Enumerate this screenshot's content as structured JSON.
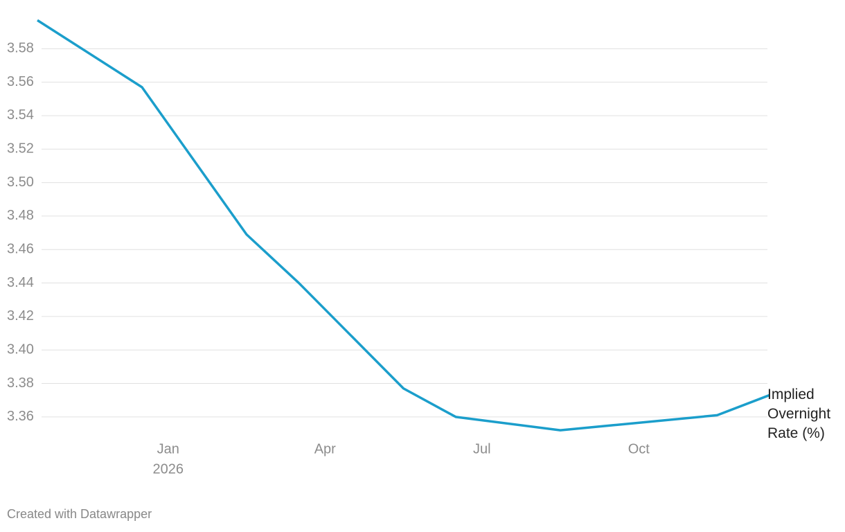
{
  "chart_data": {
    "type": "line",
    "x": [
      "2025-10",
      "2025-12",
      "2026-02",
      "2026-03",
      "2026-05",
      "2026-06",
      "2026-08",
      "2026-09",
      "2026-11",
      "2026-12"
    ],
    "series": [
      {
        "name": "Implied Overnight Rate (%)",
        "color": "#1b9ecb",
        "values": [
          3.597,
          3.557,
          3.469,
          3.44,
          3.377,
          3.36,
          3.352,
          3.355,
          3.361,
          3.373
        ]
      }
    ],
    "xlim": [
      "2025-10",
      "2026-12"
    ],
    "xticks": [
      {
        "value": "2026-01",
        "label": "Jan",
        "year": "2026"
      },
      {
        "value": "2026-04",
        "label": "Apr"
      },
      {
        "value": "2026-07",
        "label": "Jul"
      },
      {
        "value": "2026-10",
        "label": "Oct"
      }
    ],
    "ylim": [
      3.35,
      3.6
    ],
    "yticks": [
      3.36,
      3.38,
      {
        "value": 3.4,
        "label": "3.40"
      },
      3.42,
      3.44,
      3.46,
      3.48,
      {
        "value": 3.5,
        "label": "3.50"
      },
      3.52,
      3.54,
      3.56,
      3.58
    ],
    "grid": true,
    "footer": "Created with Datawrapper"
  }
}
